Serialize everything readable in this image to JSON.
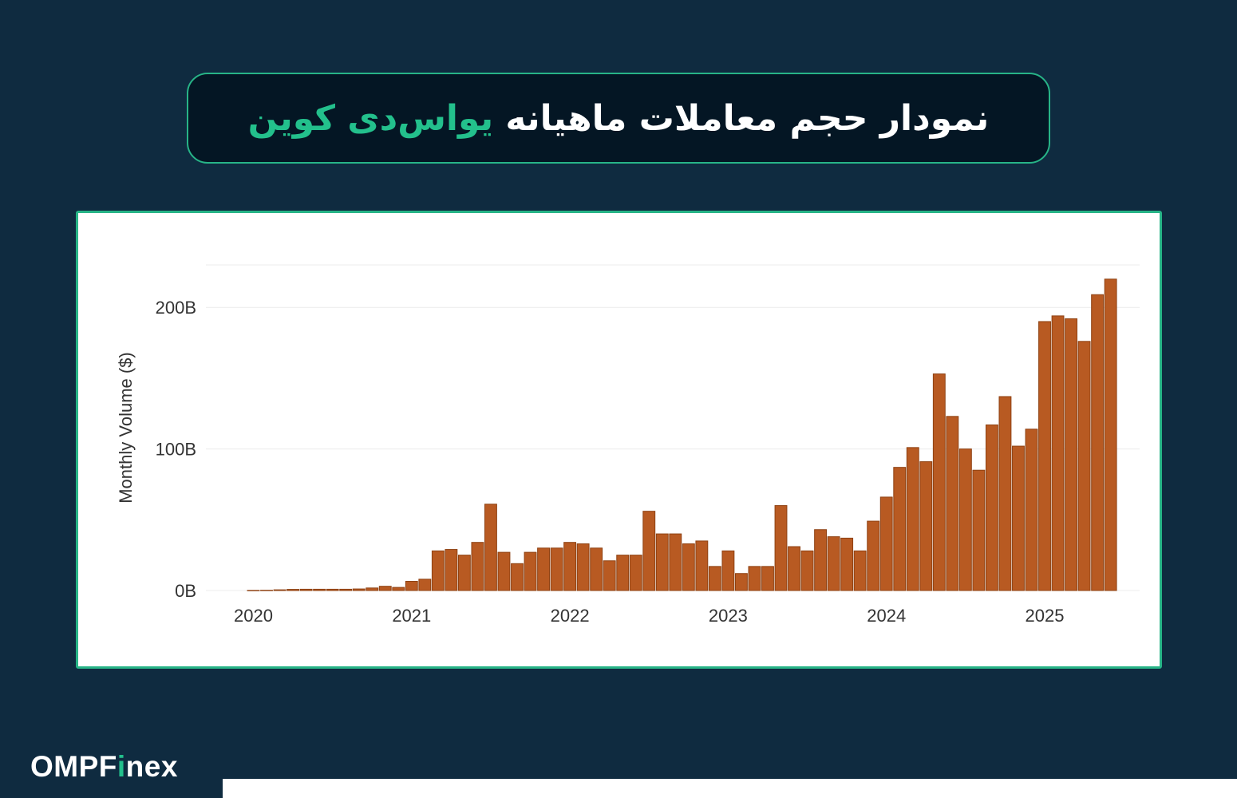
{
  "title": {
    "text_main": "نمودار حجم معاملات ماهیانه",
    "text_highlight": "یواس‌دی کوین"
  },
  "brand": {
    "logo_prefix": "OMPF",
    "logo_i": "i",
    "logo_suffix": "nex"
  },
  "colors": {
    "background": "#0f2b40",
    "accent": "#23c08c",
    "bar": "#b85a22"
  },
  "chart_data": {
    "type": "bar",
    "ylabel": "Monthly Volume ($)",
    "xlabel": "",
    "ylim": [
      0,
      230
    ],
    "y_ticks": [
      {
        "value": 0,
        "label": "0B"
      },
      {
        "value": 100,
        "label": "100B"
      },
      {
        "value": 200,
        "label": "200B"
      }
    ],
    "x_ticks": [
      {
        "value": 2020.0,
        "label": "2020"
      },
      {
        "value": 2021.0,
        "label": "2021"
      },
      {
        "value": 2022.0,
        "label": "2022"
      },
      {
        "value": 2023.0,
        "label": "2023"
      },
      {
        "value": 2024.0,
        "label": "2024"
      },
      {
        "value": 2025.0,
        "label": "2025"
      }
    ],
    "xlim": [
      2019.7,
      2025.6
    ],
    "x_start": "2020-01",
    "unit": "B",
    "values": [
      0.1,
      0.2,
      0.5,
      0.8,
      0.9,
      0.9,
      0.9,
      0.9,
      1.1,
      1.8,
      3,
      2.2,
      6.5,
      8,
      28,
      29,
      25,
      34,
      61,
      27,
      19,
      27,
      30,
      30,
      34,
      33,
      30,
      21,
      25,
      25,
      56,
      40,
      40,
      33,
      35,
      17,
      28,
      12,
      17,
      17,
      60,
      31,
      28,
      43,
      38,
      37,
      28,
      49,
      66,
      87,
      101,
      91,
      153,
      123,
      100,
      85,
      117,
      137,
      102,
      114,
      190,
      194,
      192,
      176,
      209,
      220
    ]
  }
}
